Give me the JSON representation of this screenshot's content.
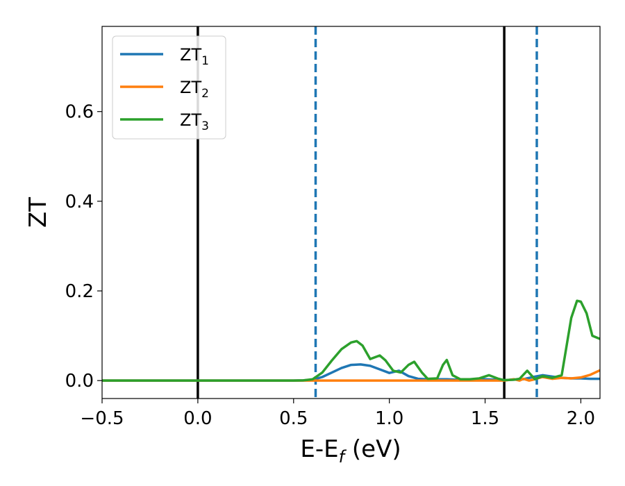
{
  "chart_data": {
    "type": "line",
    "xlabel": "E-E",
    "xlabel_sub": "f",
    "xlabel_unit": " (eV)",
    "ylabel": "ZT",
    "xlim": [
      -0.5,
      2.1
    ],
    "ylim": [
      -0.04,
      0.79
    ],
    "xticks": [
      -0.5,
      0.0,
      0.5,
      1.0,
      1.5,
      2.0
    ],
    "xtick_labels": [
      "−0.5",
      "0.0",
      "0.5",
      "1.0",
      "1.5",
      "2.0"
    ],
    "yticks": [
      0.0,
      0.2,
      0.4,
      0.6
    ],
    "ytick_labels": [
      "0.0",
      "0.2",
      "0.4",
      "0.6"
    ],
    "grid": false,
    "legend_position": "top-left",
    "series": [
      {
        "name": "ZT",
        "sub": "1",
        "color": "#1f77b4",
        "x": [
          -0.5,
          0.0,
          0.5,
          0.55,
          0.6,
          0.65,
          0.7,
          0.75,
          0.8,
          0.85,
          0.9,
          0.95,
          1.0,
          1.05,
          1.1,
          1.15,
          1.2,
          1.25,
          1.3,
          1.35,
          1.4,
          1.45,
          1.5,
          1.55,
          1.6,
          1.65,
          1.7,
          1.75,
          1.8,
          1.85,
          1.9,
          1.95,
          2.0,
          2.05,
          2.1
        ],
        "y": [
          0.0,
          0.0,
          0.0,
          0.0005,
          0.002,
          0.008,
          0.018,
          0.028,
          0.035,
          0.036,
          0.033,
          0.025,
          0.017,
          0.022,
          0.01,
          0.004,
          0.003,
          0.003,
          0.003,
          0.002,
          0.002,
          0.002,
          0.003,
          0.002,
          0.001,
          0.002,
          0.003,
          0.008,
          0.012,
          0.009,
          0.006,
          0.005,
          0.005,
          0.004,
          0.004
        ]
      },
      {
        "name": "ZT",
        "sub": "2",
        "color": "#ff7f0e",
        "x": [
          -0.5,
          0.0,
          0.5,
          1.0,
          1.5,
          1.6,
          1.65,
          1.68,
          1.7,
          1.73,
          1.75,
          1.8,
          1.85,
          1.9,
          1.95,
          2.0,
          2.05,
          2.1
        ],
        "y": [
          0.0,
          0.0,
          0.0,
          0.0,
          0.0,
          0.0,
          0.003,
          0.0,
          0.004,
          0.0,
          0.002,
          0.008,
          0.004,
          0.006,
          0.005,
          0.007,
          0.013,
          0.023
        ]
      },
      {
        "name": "ZT",
        "sub": "3",
        "color": "#2ca02c",
        "x": [
          -0.5,
          0.0,
          0.5,
          0.55,
          0.6,
          0.65,
          0.7,
          0.75,
          0.8,
          0.83,
          0.86,
          0.9,
          0.95,
          0.98,
          1.02,
          1.06,
          1.1,
          1.13,
          1.17,
          1.2,
          1.25,
          1.28,
          1.3,
          1.33,
          1.37,
          1.42,
          1.47,
          1.52,
          1.57,
          1.6,
          1.65,
          1.68,
          1.72,
          1.76,
          1.8,
          1.85,
          1.9,
          1.95,
          1.98,
          2.0,
          2.03,
          2.06,
          2.1
        ],
        "y": [
          0.0,
          0.0,
          0.0,
          0.0005,
          0.003,
          0.018,
          0.045,
          0.07,
          0.085,
          0.088,
          0.078,
          0.048,
          0.056,
          0.045,
          0.022,
          0.018,
          0.035,
          0.042,
          0.018,
          0.004,
          0.005,
          0.035,
          0.046,
          0.012,
          0.003,
          0.003,
          0.005,
          0.012,
          0.004,
          0.001,
          0.002,
          0.004,
          0.022,
          0.003,
          0.01,
          0.006,
          0.012,
          0.14,
          0.178,
          0.176,
          0.15,
          0.1,
          0.093
        ]
      }
    ],
    "vlines": [
      {
        "x": 0.0,
        "style": "solid",
        "color": "#000000"
      },
      {
        "x": 1.6,
        "style": "solid",
        "color": "#000000"
      },
      {
        "x": 0.615,
        "style": "dashed",
        "color": "#1f77b4"
      },
      {
        "x": 1.77,
        "style": "dashed",
        "color": "#1f77b4"
      }
    ]
  }
}
